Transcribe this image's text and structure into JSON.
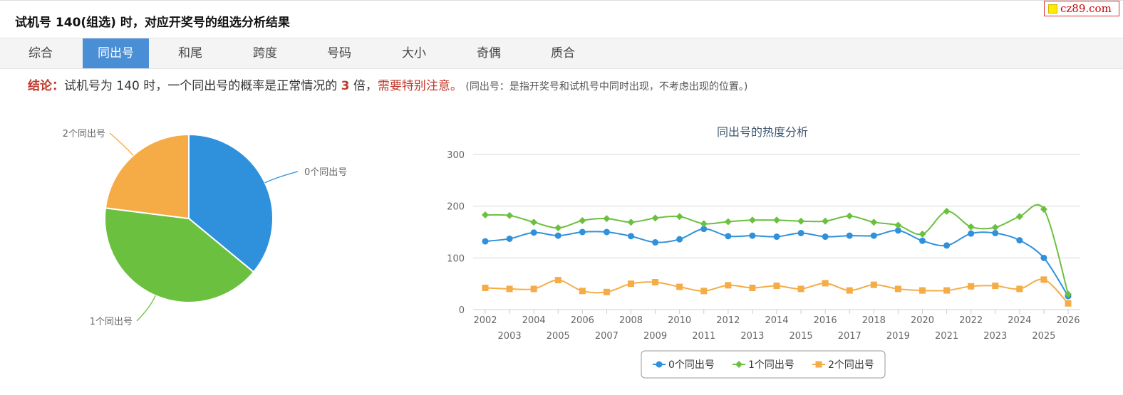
{
  "header": {
    "title": "试机号 140(组选) 时，对应开奖号的组选分析结果"
  },
  "logo": {
    "text": "cz89.com"
  },
  "tabs": [
    {
      "label": "综合",
      "active": false
    },
    {
      "label": "同出号",
      "active": true
    },
    {
      "label": "和尾",
      "active": false
    },
    {
      "label": "跨度",
      "active": false
    },
    {
      "label": "号码",
      "active": false
    },
    {
      "label": "大小",
      "active": false
    },
    {
      "label": "奇偶",
      "active": false
    },
    {
      "label": "质合",
      "active": false
    }
  ],
  "conclusion": {
    "label": "结论：",
    "text_before": "试机号为 140 时，一个同出号的概率是正常情况的 ",
    "multiple": "3",
    "text_after": " 倍，",
    "warning": "需要特别注意。",
    "note": " (同出号：是指开奖号和试机号中同时出现，不考虑出现的位置。)"
  },
  "chart_data": [
    {
      "type": "pie",
      "slices": [
        {
          "label": "0个同出号",
          "value": 0.36,
          "color": "#2f91dc"
        },
        {
          "label": "1个同出号",
          "value": 0.41,
          "color": "#6cc03f"
        },
        {
          "label": "2个同出号",
          "value": 0.23,
          "color": "#f5ac47"
        }
      ]
    },
    {
      "type": "line",
      "title": "同出号的热度分析",
      "categories": [
        "2002",
        "2003",
        "2004",
        "2005",
        "2006",
        "2007",
        "2008",
        "2009",
        "2010",
        "2011",
        "2012",
        "2013",
        "2014",
        "2015",
        "2016",
        "2017",
        "2018",
        "2019",
        "2020",
        "2021",
        "2022",
        "2023",
        "2024",
        "2025",
        "2026"
      ],
      "ylim": [
        0,
        300
      ],
      "yticks": [
        "0",
        "100",
        "200",
        "300"
      ],
      "grid": true,
      "legend_position": "bottom-center",
      "series": [
        {
          "name": "0个同出号",
          "color": "#2f91dc",
          "marker": "circle",
          "values": [
            132,
            137,
            149,
            143,
            150,
            150,
            142,
            130,
            136,
            156,
            142,
            143,
            141,
            148,
            141,
            143,
            143,
            153,
            133,
            124,
            147,
            148,
            134,
            100,
            26
          ]
        },
        {
          "name": "1个同出号",
          "color": "#6cc03f",
          "marker": "diamond",
          "values": [
            183,
            182,
            169,
            158,
            172,
            176,
            169,
            177,
            180,
            166,
            170,
            173,
            173,
            171,
            171,
            181,
            169,
            163,
            146,
            190,
            160,
            159,
            180,
            194,
            30
          ]
        },
        {
          "name": "2个同出号",
          "color": "#f5ac47",
          "marker": "square",
          "values": [
            42,
            40,
            40,
            57,
            36,
            34,
            50,
            53,
            44,
            36,
            47,
            42,
            46,
            40,
            51,
            37,
            48,
            40,
            37,
            37,
            45,
            46,
            40,
            58,
            12
          ]
        }
      ]
    }
  ]
}
